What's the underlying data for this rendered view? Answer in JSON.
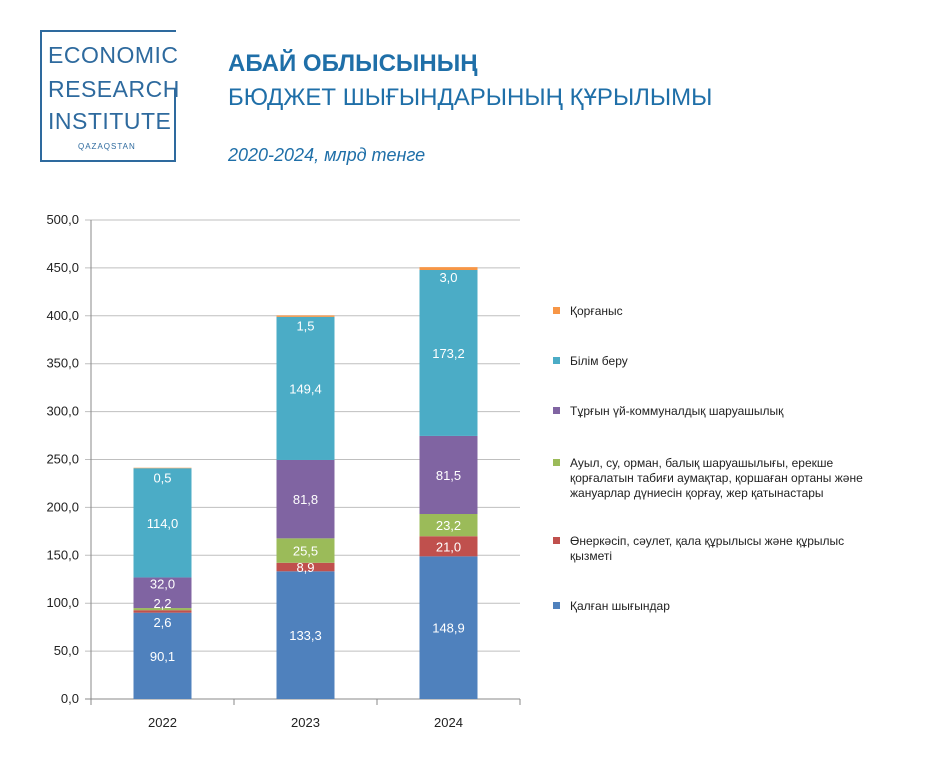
{
  "logo": {
    "line1": "ECONOMIC",
    "line2": "RESEARCH",
    "line3": "INSTITUTE",
    "sub": "QAZAQSTAN"
  },
  "chart_data": {
    "type": "bar",
    "stacked": true,
    "title": "АБАЙ ОБЛЫСЫНЫҢ",
    "title_line2": "БЮДЖЕТ ШЫҒЫНДАРЫНЫҢ ҚҰРЫЛЫМЫ",
    "subtitle": "2020-2024, млрд тенге",
    "categories": [
      "2022",
      "2023",
      "2024"
    ],
    "ylim": [
      0,
      500
    ],
    "yticks": [
      "0,0",
      "50,0",
      "100,0",
      "150,0",
      "200,0",
      "250,0",
      "300,0",
      "350,0",
      "400,0",
      "450,0",
      "500,0"
    ],
    "grid": true,
    "legend_position": "right",
    "series": [
      {
        "name": "Қалған шығындар",
        "color": "#4f81bd",
        "values": [
          90.1,
          133.3,
          148.9
        ],
        "labels": [
          "90,1",
          "133,3",
          "148,9"
        ]
      },
      {
        "name": "Өнеркәсіп, сәулет, қала құрылысы және құрылыс қызметі",
        "color": "#c0504d",
        "values": [
          2.6,
          8.9,
          21.0
        ],
        "labels": [
          "2,6",
          "8,9",
          "21,0"
        ]
      },
      {
        "name": "Ауыл, су, орман, балық шаруашылығы, ерекше қорғалатын табиғи аумақтар, қоршаған ортаны және жануарлар дүниесін қорғау, жер қатынастары",
        "color": "#9bbb59",
        "values": [
          2.2,
          25.5,
          23.2
        ],
        "labels": [
          "2,2",
          "25,5",
          "23,2"
        ]
      },
      {
        "name": "Тұрғын үй-коммуналдық шаруашылық",
        "color": "#8064a2",
        "values": [
          32.0,
          81.8,
          81.5
        ],
        "labels": [
          "32,0",
          "81,8",
          "81,5"
        ]
      },
      {
        "name": "Білім беру",
        "color": "#4bacc6",
        "values": [
          114.0,
          149.4,
          173.2
        ],
        "labels": [
          "114,0",
          "149,4",
          "173,2"
        ]
      },
      {
        "name": "Қорғаныс",
        "color": "#f79646",
        "values": [
          0.5,
          1.5,
          3.0
        ],
        "labels": [
          "0,5",
          "1,5",
          "3,0"
        ]
      }
    ],
    "legend_order": [
      {
        "lines": [
          "Қорғаныс"
        ],
        "series_index": 5
      },
      {
        "lines": [
          "Білім беру"
        ],
        "series_index": 4
      },
      {
        "lines": [
          "Тұрғын үй-коммуналдық шаруашылық"
        ],
        "series_index": 3
      },
      {
        "lines": [
          "Ауыл, су, орман, балық шаруашылығы, ерекше",
          "қорғалатын табиғи аумақтар, қоршаған ортаны және",
          "жануарлар дүниесін қорғау, жер қатынастары"
        ],
        "series_index": 2
      },
      {
        "lines": [
          "Өнеркәсіп, сәулет, қала құрылысы және құрылыс",
          "қызметі"
        ],
        "series_index": 1
      },
      {
        "lines": [
          "Қалған шығындар"
        ],
        "series_index": 0
      }
    ]
  }
}
